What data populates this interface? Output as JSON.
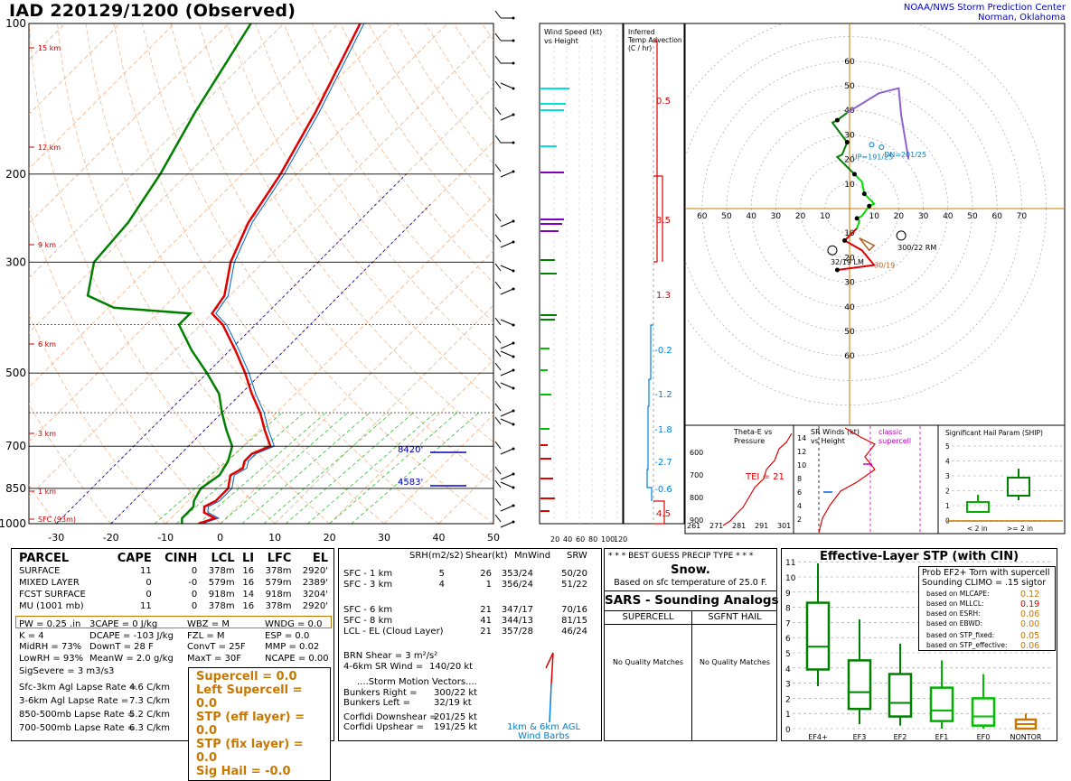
{
  "header": {
    "title": "IAD   220129/1200  (Observed)",
    "org_line1": "NOAA/NWS Storm Prediction Center",
    "org_line2": "Norman, Oklahoma"
  },
  "skewt": {
    "pressure_labels": [
      "100",
      "200",
      "300",
      "500",
      "700",
      "850",
      "1000"
    ],
    "temp_labels": [
      "-30",
      "-20",
      "-10",
      "0",
      "10",
      "20",
      "30",
      "40",
      "50"
    ],
    "height_labels": [
      "15 km",
      "12 km",
      "9 km",
      "6 km",
      "3 km",
      "1 km",
      "SFC (93m)"
    ],
    "sfc_dewpoint": "19",
    "sfc_temp": "25",
    "level_labels": [
      "8420'",
      "4583'"
    ]
  },
  "chart_data": [
    {
      "type": "line",
      "title": "",
      "xlabel": "",
      "ylabel": "",
      "ylim": [
        1000,
        100
      ],
      "xlim": [
        -35,
        50
      ],
      "series": [
        {
          "name": "",
          "points": [
            [
              1000,
              -4
            ],
            [
              975,
              -2
            ],
            [
              950,
              -5
            ],
            [
              925,
              -6
            ],
            [
              900,
              -5
            ],
            [
              875,
              -5
            ],
            [
              850,
              -5
            ],
            [
              825,
              -6
            ],
            [
              800,
              -7
            ],
            [
              775,
              -6
            ],
            [
              750,
              -7
            ],
            [
              725,
              -7
            ],
            [
              700,
              -5
            ],
            [
              650,
              -9
            ],
            [
              600,
              -13
            ],
            [
              550,
              -18
            ],
            [
              500,
              -23
            ],
            [
              450,
              -29
            ],
            [
              400,
              -36
            ],
            [
              380,
              -40
            ],
            [
              350,
              -41
            ],
            [
              300,
              -46
            ],
            [
              250,
              -50
            ],
            [
              200,
              -53
            ],
            [
              150,
              -58
            ],
            [
              100,
              -66
            ]
          ]
        },
        {
          "name": "",
          "points": [
            [
              1000,
              -7
            ],
            [
              975,
              -8
            ],
            [
              950,
              -8
            ],
            [
              925,
              -8
            ],
            [
              900,
              -9
            ],
            [
              850,
              -10
            ],
            [
              800,
              -9
            ],
            [
              750,
              -10
            ],
            [
              700,
              -12
            ],
            [
              650,
              -16
            ],
            [
              600,
              -20
            ],
            [
              550,
              -24
            ],
            [
              500,
              -30
            ],
            [
              450,
              -37
            ],
            [
              400,
              -44
            ],
            [
              380,
              -44
            ],
            [
              370,
              -59
            ],
            [
              350,
              -66
            ],
            [
              300,
              -71
            ],
            [
              250,
              -72
            ],
            [
              200,
              -75
            ],
            [
              150,
              -80
            ],
            [
              100,
              -86
            ]
          ]
        }
      ]
    },
    {
      "type": "line",
      "title": "",
      "xlabel": "",
      "ylabel": "",
      "xlim": [
        -60,
        70
      ],
      "ylim": [
        -70,
        70
      ],
      "series": [
        {
          "name": "",
          "points": [
            [
              -5,
              -25
            ],
            [
              10,
              -23
            ],
            [
              5,
              -17
            ],
            [
              -2,
              -13
            ],
            [
              3,
              -8
            ],
            [
              4,
              -5
            ],
            [
              3,
              -4
            ],
            [
              5,
              -3
            ],
            [
              8,
              1
            ],
            [
              10,
              2
            ],
            [
              6,
              6
            ],
            [
              5,
              11
            ],
            [
              2,
              14
            ],
            [
              0,
              16
            ],
            [
              -5,
              21
            ],
            [
              -3,
              22
            ],
            [
              -1,
              27
            ],
            [
              -7,
              35
            ],
            [
              -5,
              36
            ],
            [
              -1,
              39
            ],
            [
              12,
              47
            ],
            [
              20,
              49
            ],
            [
              21,
              38
            ],
            [
              24,
              20
            ]
          ]
        }
      ],
      "storm_motion": {
        "bunkers_right": "300/22 RM",
        "bunkers_left": "32/19 LM"
      },
      "ring_labels": [
        "10",
        "20",
        "30",
        "40",
        "50",
        "60",
        "70"
      ],
      "hodo_marks": [
        "8",
        "7",
        "6",
        "5",
        "4",
        "3",
        "2",
        "1",
        "0"
      ],
      "up_labels": [
        "UP=191/25",
        "DN=201/25",
        "30/19"
      ]
    },
    {
      "type": "bar",
      "title": "Wind Speed (kt)\nvs Height",
      "xlabel": "",
      "ylabel": "",
      "tick_labels": [
        "20",
        "40",
        "60",
        "80",
        "100",
        "120"
      ]
    },
    {
      "type": "bar",
      "title": "Inferred\nTemp Advection\n(C / hr)",
      "values_labels": [
        "0.5",
        "3.5",
        "1.3",
        "-0.2",
        "-1.2",
        "-1.8",
        "-2.7",
        "-0.6",
        "4.5"
      ]
    },
    {
      "type": "line",
      "title": "Theta-E vs\nPressure",
      "x_ticks": [
        "261",
        "271",
        "281",
        "291",
        "301"
      ],
      "y_ticks": [
        "600",
        "700",
        "800",
        "900"
      ],
      "annotation": "TEI = 21"
    },
    {
      "type": "line",
      "title": "SR Winds (kt)\nvs Height",
      "y_ticks": [
        "14",
        "12",
        "10",
        "8",
        "6",
        "4",
        "2"
      ],
      "annotation": "classic\nsupercell"
    },
    {
      "type": "bar",
      "title": "Significant Hail Param (SHIP)",
      "y_ticks": [
        "5",
        "4",
        "3",
        "2",
        "1",
        "0"
      ],
      "categories": [
        "< 2 in",
        ">= 2 in"
      ]
    },
    {
      "type": "bar",
      "title": "Effective-Layer STP (with CIN)",
      "categories": [
        "EF4+",
        "EF3",
        "EF2",
        "EF1",
        "EF0",
        "NONTOR"
      ],
      "y_ticks": [
        "11",
        "10",
        "9",
        "8",
        "7",
        "6",
        "5",
        "4",
        "3",
        "2",
        "1",
        "0"
      ],
      "boxes": [
        {
          "cat": "EF4+",
          "low": 2.8,
          "q1": 3.9,
          "med": 5.4,
          "q3": 8.3,
          "high": 10.9
        },
        {
          "cat": "EF3",
          "low": 0.3,
          "q1": 1.3,
          "med": 2.4,
          "q3": 4.5,
          "high": 7.2
        },
        {
          "cat": "EF2",
          "low": 0.2,
          "q1": 0.8,
          "med": 1.7,
          "q3": 3.6,
          "high": 5.6
        },
        {
          "cat": "EF1",
          "low": 0.0,
          "q1": 0.5,
          "med": 1.2,
          "q3": 2.7,
          "high": 4.5
        },
        {
          "cat": "EF0",
          "low": 0.0,
          "q1": 0.2,
          "med": 0.8,
          "q3": 2.0,
          "high": 3.6
        },
        {
          "cat": "NONTOR",
          "low": 0.0,
          "q1": 0.0,
          "med": 0.3,
          "q3": 0.6,
          "high": 1.0
        }
      ]
    }
  ],
  "parcel": {
    "headers": [
      "PARCEL",
      "CAPE",
      "CINH",
      "LCL",
      "LI",
      "LFC",
      "EL"
    ],
    "rows": [
      [
        "SURFACE",
        "11",
        "0",
        "378m",
        "16",
        "378m",
        "2920'"
      ],
      [
        "MIXED LAYER",
        "0",
        "-0",
        "579m",
        "16",
        "579m",
        "2389'"
      ],
      [
        "FCST SURFACE",
        "0",
        "0",
        "918m",
        "14",
        "918m",
        "3204'"
      ],
      [
        "MU   (1001 mb)",
        "11",
        "0",
        "378m",
        "16",
        "378m",
        "2920'"
      ]
    ]
  },
  "indices": {
    "lines": [
      [
        "PW = 0.25 .in",
        "3CAPE = 0 J/kg",
        "WBZ = M",
        "WNDG = 0.0"
      ],
      [
        "K = 4",
        "DCAPE = -103 J/kg",
        "FZL = M",
        "ESP = 0.0"
      ],
      [
        "MidRH = 73%",
        "DownT = 28 F",
        "ConvT = 25F",
        "MMP = 0.02"
      ],
      [
        "LowRH = 93%",
        "MeanW = 2.0 g/kg",
        "MaxT = 30F",
        "NCAPE = 0.00"
      ]
    ],
    "sigsevere": "SigSevere = 3 m3/s3",
    "lapse": [
      [
        "Sfc-3km Agl Lapse Rate =",
        "4.6 C/km"
      ],
      [
        "3-6km Agl Lapse Rate =",
        "7.3 C/km"
      ],
      [
        "850-500mb Lapse Rate =",
        "5.2 C/km"
      ],
      [
        "700-500mb Lapse Rate =",
        "6.3 C/km"
      ]
    ],
    "gold": [
      "Supercell = 0.0",
      "Left Supercell = 0.0",
      "STP (eff layer) = 0.0",
      "STP (fix layer) = 0.0",
      "Sig Hail = -0.0"
    ]
  },
  "kinematics": {
    "headers": [
      "SRH(m2/s2)",
      "Shear(kt)",
      "MnWind",
      "SRW"
    ],
    "rows1": [
      [
        "SFC - 1 km",
        "5",
        "26",
        "353/24",
        "50/20"
      ],
      [
        "SFC - 3 km",
        "4",
        "1",
        "356/24",
        "51/22"
      ]
    ],
    "rows2": [
      [
        "SFC - 6 km",
        "",
        "21",
        "347/17",
        "70/16"
      ],
      [
        "SFC - 8 km",
        "",
        "41",
        "344/13",
        "81/15"
      ],
      [
        "LCL - EL (Cloud Layer)",
        "",
        "21",
        "357/28",
        "46/24"
      ]
    ],
    "brn": "BRN Shear = 3 m²/s²",
    "srwind": "4-6km SR Wind =",
    "srwind_val": "140/20 kt",
    "sm_title": "....Storm Motion Vectors....",
    "sm_rows": [
      [
        "Bunkers Right =",
        "300/22 kt"
      ],
      [
        "Bunkers Left =",
        "32/19 kt"
      ],
      [
        "Corfidi Downshear =",
        "201/25 kt"
      ],
      [
        "Corfidi Upshear =",
        "191/25 kt"
      ]
    ],
    "barb_label1": "1km & 6km AGL",
    "barb_label2": "Wind Barbs"
  },
  "precip": {
    "title": "* * *  BEST GUESS PRECIP TYPE  * * *",
    "value": "Snow.",
    "note": "Based on sfc temperature of 25.0 F."
  },
  "sars": {
    "title": "SARS - Sounding Analogs",
    "col1": "SUPERCELL",
    "col2": "SGFNT HAIL",
    "msg1": "No Quality Matches",
    "msg2": "No Quality Matches"
  },
  "stp": {
    "prob_title1": "Prob EF2+ Torn with supercell",
    "prob_title2": "Sounding CLIMO = .15 sigtor",
    "rows": [
      [
        "based on MLCAPE:",
        "0.12",
        "#c87800"
      ],
      [
        "based on MLLCL:",
        "0.19",
        "#c80000"
      ],
      [
        "based on ESRH:",
        "0.06",
        "#c87800"
      ],
      [
        "based on EBWD:",
        "0.00",
        "#c87800"
      ],
      [
        "based on STP_fixed:",
        "0.05",
        "#c87800"
      ],
      [
        "based on STP_effective:",
        "0.06",
        "#c87800"
      ]
    ]
  },
  "colors": {
    "temp": "#e00000",
    "dewpoint": "#008000",
    "virtual": "#0064c8",
    "hodo_green": "#00a000",
    "gold": "#c87800"
  }
}
